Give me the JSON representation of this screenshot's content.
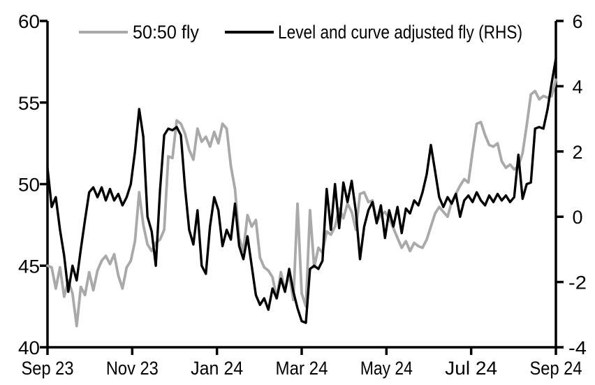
{
  "chart_data": {
    "type": "line",
    "title": "",
    "grid": false,
    "legend": {
      "position": "top-inside"
    },
    "x_axis": {
      "tick_labels": [
        "Sep 23",
        "Nov 23",
        "Jan 24",
        "Mar 24",
        "May 24",
        "Jul 24",
        "Sep 24"
      ],
      "start_label": "Sep 23",
      "end_label": "Sep 24",
      "total_days": 366,
      "sample_interval_days": 3
    },
    "y_left": {
      "min": 40,
      "max": 60,
      "tick_labels": [
        "40",
        "45",
        "50",
        "55",
        "60"
      ]
    },
    "y_right": {
      "min": -4,
      "max": 6,
      "tick_labels": [
        "-4",
        "-2",
        "0",
        "2",
        "4",
        "6"
      ]
    },
    "series": [
      {
        "name": "50:50 fly",
        "axis": "left",
        "color": "#a9a9a9",
        "values": [
          45.0,
          44.9,
          43.6,
          44.9,
          43.1,
          44.1,
          43.3,
          41.3,
          43.7,
          43.2,
          44.6,
          43.5,
          44.7,
          45.3,
          45.6,
          45.1,
          45.7,
          44.4,
          43.6,
          44.9,
          45.3,
          46.5,
          49.5,
          47.5,
          46.3,
          45.9,
          46.4,
          46.6,
          47.2,
          51.7,
          51.6,
          53.9,
          53.7,
          53.1,
          52.1,
          51.5,
          53.4,
          52.6,
          52.9,
          52.3,
          53.2,
          52.5,
          53.7,
          53.4,
          51.1,
          49.7,
          46.7,
          45.9,
          48.1,
          47.4,
          47.8,
          45.5,
          44.9,
          44.7,
          44.3,
          43.0,
          44.6,
          43.5,
          44.5,
          42.9,
          48.8,
          43.3,
          42.5,
          48.4,
          44.9,
          46.1,
          45.8,
          47.1,
          46.9,
          47.4,
          48.5,
          47.9,
          48.8,
          48.3,
          47.2,
          49.4,
          49.5,
          48.9,
          49.0,
          47.7,
          48.1,
          48.3,
          47.9,
          47.3,
          46.7,
          46.1,
          46.5,
          45.9,
          46.4,
          46.2,
          46.1,
          46.6,
          47.4,
          48.2,
          48.6,
          48.3,
          48.0,
          48.9,
          49.4,
          49.9,
          50.3,
          50.1,
          52.0,
          53.7,
          53.8,
          53.0,
          52.4,
          52.3,
          52.5,
          51.4,
          51.0,
          51.2,
          50.9,
          51.1,
          51.9,
          53.6,
          55.5,
          55.7,
          55.2,
          55.4,
          55.3,
          55.4,
          56.4
        ]
      },
      {
        "name": "Level and curve adjusted fly (RHS)",
        "axis": "right",
        "color": "#000000",
        "values": [
          1.5,
          0.3,
          0.6,
          -0.4,
          -1.2,
          -2.3,
          -1.5,
          -1.95,
          -1.0,
          -0.1,
          0.75,
          0.9,
          0.6,
          0.9,
          0.5,
          0.85,
          0.5,
          0.7,
          0.35,
          0.6,
          1.0,
          2.0,
          3.3,
          2.45,
          0.0,
          -0.45,
          -1.5,
          0.8,
          2.5,
          2.7,
          2.65,
          2.75,
          2.5,
          0.9,
          -0.4,
          -0.85,
          0.2,
          -1.5,
          -1.75,
          -0.3,
          0.6,
          0.2,
          -0.9,
          -0.4,
          -0.7,
          0.4,
          -0.9,
          -1.3,
          -0.6,
          -1.5,
          -2.4,
          -2.7,
          -2.5,
          -2.85,
          -2.2,
          -2.5,
          -1.9,
          -2.3,
          -1.6,
          -2.3,
          -2.8,
          -3.2,
          -3.25,
          -1.6,
          -1.5,
          -1.6,
          -1.35,
          0.85,
          -0.4,
          1.0,
          -0.35,
          1.05,
          0.45,
          1.1,
          0.15,
          -1.3,
          -0.3,
          0.2,
          0.45,
          -0.2,
          0.35,
          -0.65,
          0.2,
          -0.3,
          0.3,
          -0.5,
          0.25,
          0.1,
          0.5,
          0.35,
          0.75,
          1.3,
          2.2,
          1.4,
          0.6,
          0.3,
          0.6,
          0.4,
          0.7,
          0.0,
          0.5,
          0.65,
          0.45,
          0.75,
          0.5,
          0.35,
          0.65,
          0.45,
          0.7,
          0.5,
          0.65,
          0.45,
          0.6,
          1.9,
          0.55,
          1.0,
          1.05,
          2.7,
          2.75,
          2.7,
          3.3,
          4.1,
          4.85
        ]
      }
    ]
  }
}
